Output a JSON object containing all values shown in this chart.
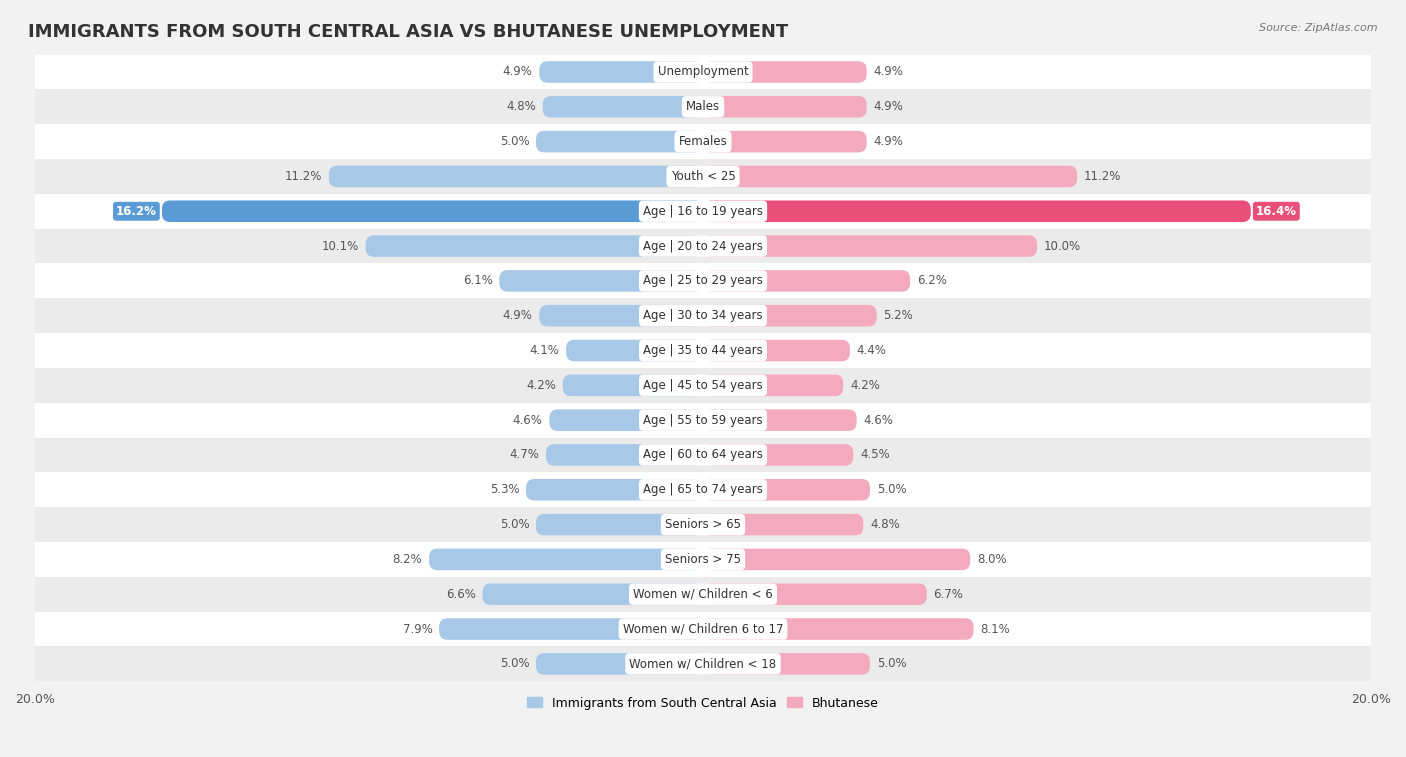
{
  "title": "IMMIGRANTS FROM SOUTH CENTRAL ASIA VS BHUTANESE UNEMPLOYMENT",
  "source": "Source: ZipAtlas.com",
  "categories": [
    "Unemployment",
    "Males",
    "Females",
    "Youth < 25",
    "Age | 16 to 19 years",
    "Age | 20 to 24 years",
    "Age | 25 to 29 years",
    "Age | 30 to 34 years",
    "Age | 35 to 44 years",
    "Age | 45 to 54 years",
    "Age | 55 to 59 years",
    "Age | 60 to 64 years",
    "Age | 65 to 74 years",
    "Seniors > 65",
    "Seniors > 75",
    "Women w/ Children < 6",
    "Women w/ Children 6 to 17",
    "Women w/ Children < 18"
  ],
  "left_values": [
    4.9,
    4.8,
    5.0,
    11.2,
    16.2,
    10.1,
    6.1,
    4.9,
    4.1,
    4.2,
    4.6,
    4.7,
    5.3,
    5.0,
    8.2,
    6.6,
    7.9,
    5.0
  ],
  "right_values": [
    4.9,
    4.9,
    4.9,
    11.2,
    16.4,
    10.0,
    6.2,
    5.2,
    4.4,
    4.2,
    4.6,
    4.5,
    5.0,
    4.8,
    8.0,
    6.7,
    8.1,
    5.0
  ],
  "left_color": "#a8c8e8",
  "right_color": "#f4aabe",
  "highlight_left_color": "#5b9bd5",
  "highlight_right_color": "#e8507a",
  "highlight_row": 4,
  "x_max": 20.0,
  "background_color": "#f2f2f2",
  "row_bg_white": "#ffffff",
  "row_bg_gray": "#ebebeb",
  "legend_left": "Immigrants from South Central Asia",
  "legend_right": "Bhutanese",
  "title_fontsize": 13,
  "label_fontsize": 8.5,
  "value_fontsize": 8.5
}
